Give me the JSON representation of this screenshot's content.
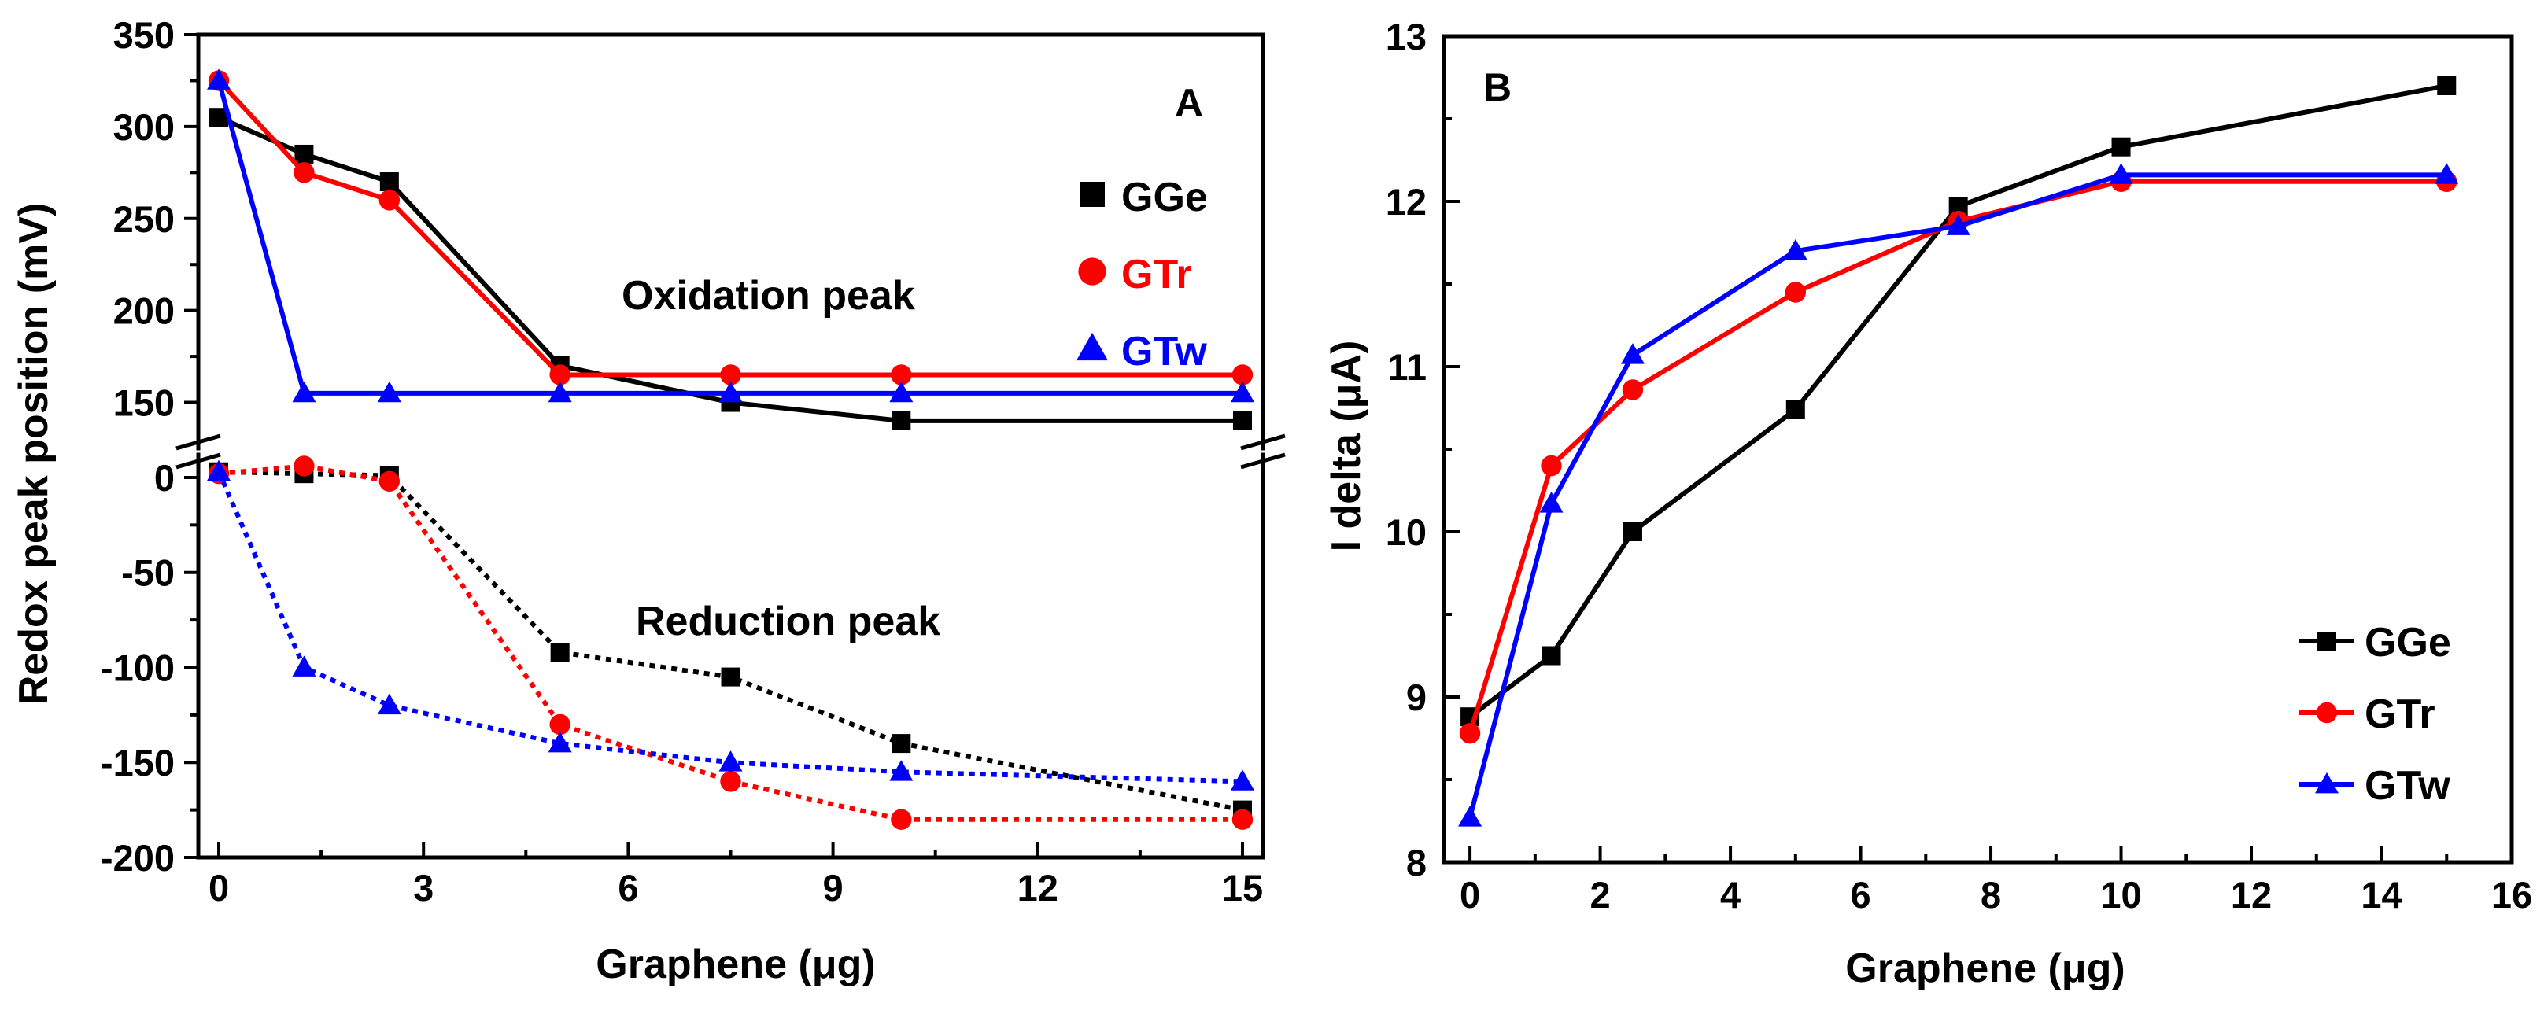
{
  "chart_data": [
    {
      "panel": "A",
      "type": "line",
      "xlabel": "Graphene (μg)",
      "ylabel": "Redox peak position (mV)",
      "xlim": [
        -0.3,
        15.3
      ],
      "x_ticks": [
        0,
        3,
        6,
        9,
        12,
        15
      ],
      "x_tick_labels": [
        "0",
        "3",
        "6",
        "9",
        "12",
        "15"
      ],
      "broken_y_axis": true,
      "upper_ylim": [
        125,
        350
      ],
      "upper_y_ticks": [
        150,
        200,
        250,
        300,
        350
      ],
      "upper_y_tick_labels": [
        "150",
        "200",
        "250",
        "300",
        "350"
      ],
      "lower_ylim": [
        -200,
        12
      ],
      "lower_y_ticks": [
        0,
        -50,
        -100,
        -150,
        -200
      ],
      "lower_y_tick_labels": [
        "0",
        "-50",
        "-100",
        "-150",
        "-200"
      ],
      "annotations": {
        "oxidation": "Oxidation peak",
        "reduction": "Reduction peak"
      },
      "legend": {
        "placement": "top-right",
        "entries": [
          "GGe",
          "GTr",
          "GTw"
        ]
      },
      "series": [
        {
          "name": "GGe",
          "color": "#000000",
          "marker": "square",
          "group": "oxidation",
          "style": "solid",
          "x": [
            0,
            1.25,
            2.5,
            5,
            7.5,
            10,
            15
          ],
          "y": [
            305,
            285,
            270,
            170,
            150,
            140,
            140
          ]
        },
        {
          "name": "GTr",
          "color": "#ff0000",
          "marker": "circle",
          "group": "oxidation",
          "style": "solid",
          "x": [
            0,
            1.25,
            2.5,
            5,
            7.5,
            10,
            15
          ],
          "y": [
            325,
            275,
            260,
            165,
            165,
            165,
            165
          ]
        },
        {
          "name": "GTw",
          "color": "#0000ff",
          "marker": "triangle",
          "group": "oxidation",
          "style": "solid",
          "x": [
            0,
            1.25,
            2.5,
            5,
            7.5,
            10,
            15
          ],
          "y": [
            325,
            155,
            155,
            155,
            155,
            155,
            155
          ]
        },
        {
          "name": "GGe",
          "color": "#000000",
          "marker": "square",
          "group": "reduction",
          "style": "dotted",
          "x": [
            0,
            1.25,
            2.5,
            5,
            7.5,
            10,
            15
          ],
          "y": [
            3,
            2,
            1,
            -92,
            -105,
            -140,
            -175
          ]
        },
        {
          "name": "GTr",
          "color": "#ff0000",
          "marker": "circle",
          "group": "reduction",
          "style": "dotted",
          "x": [
            0,
            1.25,
            2.5,
            5,
            7.5,
            10,
            15
          ],
          "y": [
            2,
            6,
            -2,
            -130,
            -160,
            -180,
            -180
          ]
        },
        {
          "name": "GTw",
          "color": "#0000ff",
          "marker": "triangle",
          "group": "reduction",
          "style": "dotted",
          "x": [
            0,
            1.25,
            2.5,
            5,
            7.5,
            10,
            15
          ],
          "y": [
            3,
            -100,
            -120,
            -140,
            -150,
            -155,
            -160
          ]
        }
      ]
    },
    {
      "panel": "B",
      "type": "line",
      "xlabel": "Graphene (μg)",
      "ylabel": "I delta (μA)",
      "xlim": [
        -0.4,
        16
      ],
      "ylim": [
        8,
        13
      ],
      "x_ticks": [
        0,
        2,
        4,
        6,
        8,
        10,
        12,
        14,
        16
      ],
      "x_tick_labels": [
        "0",
        "2",
        "4",
        "6",
        "8",
        "10",
        "12",
        "14",
        "16"
      ],
      "y_ticks": [
        8,
        9,
        10,
        11,
        12,
        13
      ],
      "y_tick_labels": [
        "8",
        "9",
        "10",
        "11",
        "12",
        "13"
      ],
      "legend": {
        "placement": "bottom-right",
        "entries": [
          "GGe",
          "GTr",
          "GTw"
        ]
      },
      "series": [
        {
          "name": "GGe",
          "color": "#000000",
          "marker": "square",
          "x": [
            0,
            1.25,
            2.5,
            5,
            7.5,
            10,
            15
          ],
          "y": [
            8.88,
            9.25,
            10.0,
            10.74,
            11.97,
            12.33,
            12.7
          ]
        },
        {
          "name": "GTr",
          "color": "#ff0000",
          "marker": "circle",
          "x": [
            0,
            1.25,
            2.5,
            5,
            7.5,
            10,
            15
          ],
          "y": [
            8.78,
            10.4,
            10.86,
            11.45,
            11.88,
            12.12,
            12.12
          ]
        },
        {
          "name": "GTw",
          "color": "#0000ff",
          "marker": "triangle",
          "x": [
            0,
            1.25,
            2.5,
            5,
            7.5,
            10,
            15
          ],
          "y": [
            8.27,
            10.17,
            11.07,
            11.7,
            11.85,
            12.16,
            12.16
          ]
        }
      ]
    }
  ]
}
